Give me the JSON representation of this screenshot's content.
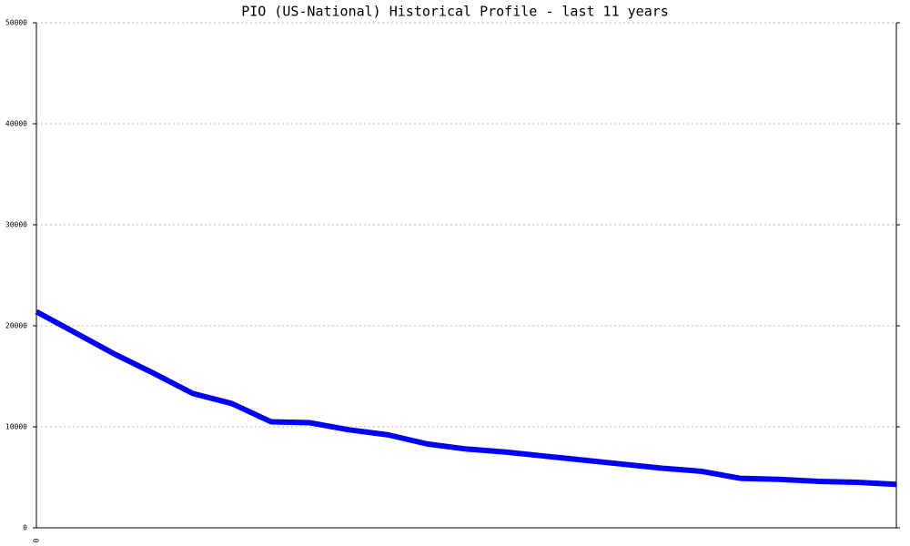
{
  "chart_data": {
    "type": "line",
    "title": "PIO (US-National) Historical Profile - last 11 years",
    "categories": [
      "0",
      null,
      null,
      null,
      null,
      null,
      null,
      null,
      null,
      null,
      null,
      null,
      null,
      null,
      null,
      null,
      null,
      null,
      null,
      null,
      null,
      null,
      null
    ],
    "series": [
      {
        "color": "#0000ff",
        "values": [
          21400,
          19300,
          17200,
          15300,
          13300,
          12300,
          10500,
          10400,
          9700,
          9200,
          8300,
          7800,
          7500,
          7100,
          6700,
          6300,
          5900,
          5600,
          4900,
          4800,
          4600,
          4500,
          4300
        ]
      }
    ],
    "ylim": [
      0,
      50000
    ],
    "yticks": [
      0,
      10000,
      20000,
      30000,
      40000,
      50000
    ],
    "grid": true
  }
}
